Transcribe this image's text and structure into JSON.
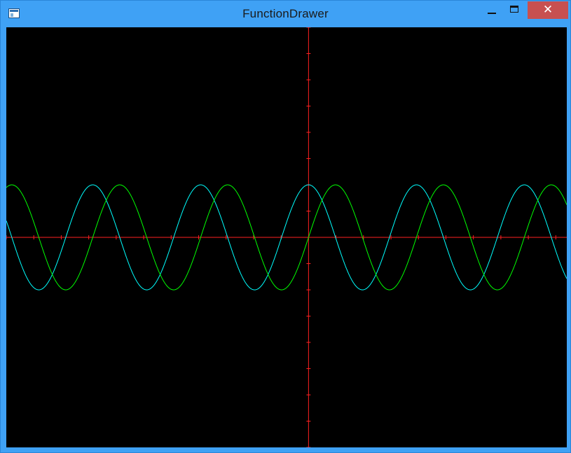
{
  "window": {
    "title": "FunctionDrawer",
    "close_glyph": "✕",
    "icons": {
      "app": "app-window-icon",
      "minimize": "minimize-icon",
      "maximize": "maximize-icon",
      "close": "close-icon"
    }
  },
  "colors": {
    "axis": "#ff2020",
    "series_cos": "#00ffff",
    "series_sin": "#00ff00",
    "background": "#000000"
  },
  "chart_data": {
    "type": "line",
    "title": "",
    "xlabel": "",
    "ylabel": "",
    "xlim": [
      -11.0,
      9.4
    ],
    "ylim": [
      -8.0,
      8.0
    ],
    "axes_at_origin": true,
    "tick_step": 1,
    "grid": false,
    "legend": "none",
    "series": [
      {
        "function": "2*cos(1.6*x)",
        "color": "#00ffff",
        "amplitude": 2,
        "period": 3.93
      },
      {
        "function": "2*sin(1.6*x)",
        "color": "#00ff00",
        "amplitude": 2,
        "period": 3.93
      }
    ]
  }
}
